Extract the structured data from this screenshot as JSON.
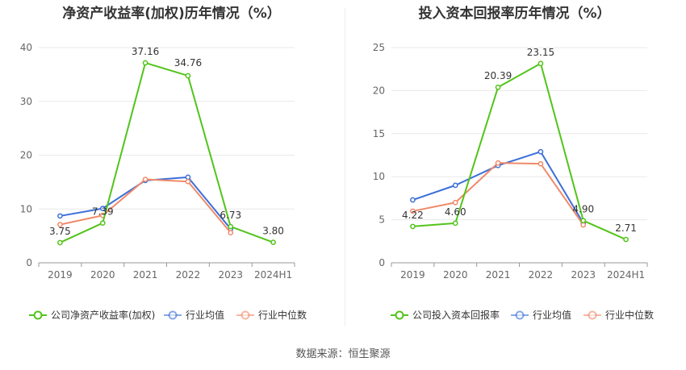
{
  "source_text": "数据来源：恒生聚源",
  "chart_data": [
    {
      "type": "line",
      "title": "净资产收益率(加权)历年情况（%）",
      "categories": [
        "2019",
        "2020",
        "2021",
        "2022",
        "2023",
        "2024H1"
      ],
      "ylim": [
        0,
        40
      ],
      "yticks": [
        0,
        10,
        20,
        30,
        40
      ],
      "grid": true,
      "legend_position": "bottom",
      "series": [
        {
          "name": "公司净资产收益率(加权)",
          "color": "#52c41a",
          "values": [
            3.75,
            7.39,
            37.16,
            34.76,
            6.73,
            3.8
          ],
          "labels": [
            "3.75",
            "7.39",
            "37.16",
            "34.76",
            "6.73",
            "3.80"
          ]
        },
        {
          "name": "行业均值",
          "color": "#3b6fd8",
          "values": [
            8.7,
            10.1,
            15.3,
            15.9,
            6.3,
            null
          ]
        },
        {
          "name": "行业中位数",
          "color": "#f08a6a",
          "values": [
            7.1,
            8.8,
            15.5,
            15.1,
            5.6,
            null
          ]
        }
      ]
    },
    {
      "type": "line",
      "title": "投入资本回报率历年情况（%）",
      "categories": [
        "2019",
        "2020",
        "2021",
        "2022",
        "2023",
        "2024H1"
      ],
      "ylim": [
        0,
        25
      ],
      "yticks": [
        0,
        5,
        10,
        15,
        20,
        25
      ],
      "grid": true,
      "legend_position": "bottom",
      "series": [
        {
          "name": "公司投入资本回报率",
          "color": "#52c41a",
          "values": [
            4.22,
            4.6,
            20.39,
            23.15,
            4.9,
            2.71
          ],
          "labels": [
            "4.22",
            "4.60",
            "20.39",
            "23.15",
            "4.90",
            "2.71"
          ]
        },
        {
          "name": "行业均值",
          "color": "#3b6fd8",
          "values": [
            7.3,
            9.0,
            11.3,
            12.9,
            4.6,
            null
          ]
        },
        {
          "name": "行业中位数",
          "color": "#f08a6a",
          "values": [
            6.0,
            7.0,
            11.6,
            11.5,
            4.4,
            null
          ]
        }
      ]
    }
  ]
}
